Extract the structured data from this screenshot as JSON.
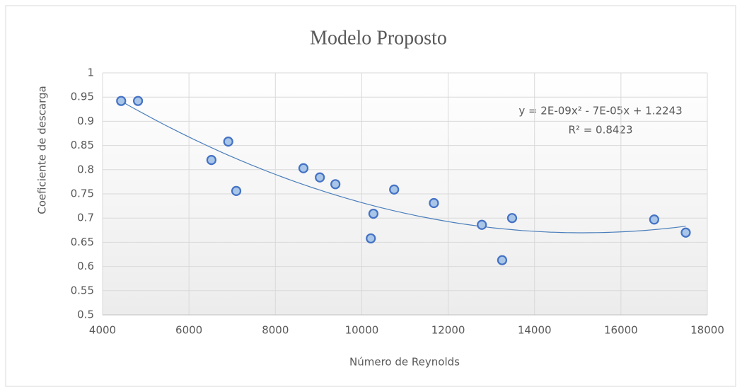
{
  "chart_data": {
    "type": "scatter",
    "title": "Modelo Proposto",
    "x_label": "Número de Reynolds",
    "y_label": "Coeficiente de descarga",
    "annotations": [
      "y = 2E-09x² - 7E-05x + 1.2243",
      "R² = 0.8423"
    ],
    "trendline": "polynomial",
    "trendline_order": 2,
    "color": "#4472c4",
    "marker_fill": "#a9c6e8",
    "trendline_color": "#4a7ebb",
    "grid": true,
    "x": [
      4430,
      4820,
      6520,
      6910,
      7095,
      8650,
      9030,
      9390,
      10270,
      10210,
      10750,
      11670,
      12780,
      13250,
      13480,
      16770,
      17500
    ],
    "values": [
      0.942,
      0.942,
      0.82,
      0.858,
      0.756,
      0.803,
      0.784,
      0.77,
      0.709,
      0.658,
      0.759,
      0.731,
      0.686,
      0.613,
      0.7,
      0.697,
      0.67
    ],
    "xlim": [
      4000,
      18000
    ],
    "xticks": [
      4000,
      6000,
      8000,
      10000,
      12000,
      14000,
      16000,
      18000
    ],
    "ylim": [
      0.5,
      1
    ],
    "yticks": [
      0.5,
      0.55,
      0.6,
      0.65,
      0.7,
      0.75,
      0.8,
      0.85,
      0.9,
      0.95,
      1
    ]
  }
}
